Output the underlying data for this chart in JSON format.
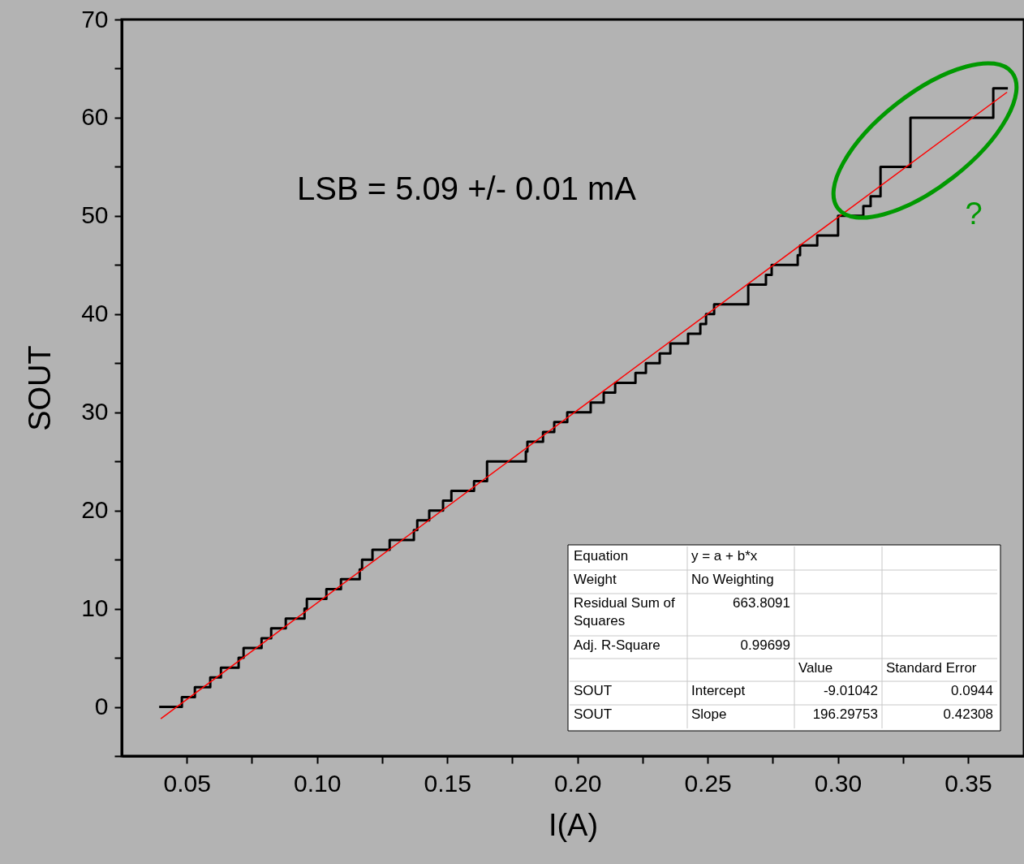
{
  "chart_data": {
    "type": "step",
    "xlabel": "I(A)",
    "ylabel": "SOUT",
    "xlim": [
      0.025,
      0.3715
    ],
    "ylim": [
      -5,
      70
    ],
    "xticks": [
      {
        "value": 0.05,
        "label": "0.05"
      },
      {
        "value": 0.075,
        "label": null
      },
      {
        "value": 0.1,
        "label": "0.10"
      },
      {
        "value": 0.125,
        "label": null
      },
      {
        "value": 0.15,
        "label": "0.15"
      },
      {
        "value": 0.175,
        "label": null
      },
      {
        "value": 0.2,
        "label": "0.20"
      },
      {
        "value": 0.225,
        "label": null
      },
      {
        "value": 0.25,
        "label": "0.25"
      },
      {
        "value": 0.275,
        "label": null
      },
      {
        "value": 0.3,
        "label": "0.30"
      },
      {
        "value": 0.325,
        "label": null
      },
      {
        "value": 0.35,
        "label": "0.35"
      }
    ],
    "yticks": [
      {
        "value": -5,
        "label": null
      },
      0,
      {
        "value": 5,
        "label": null
      },
      10,
      {
        "value": 15,
        "label": null
      },
      20,
      {
        "value": 25,
        "label": null
      },
      30,
      {
        "value": 35,
        "label": null
      },
      40,
      {
        "value": 45,
        "label": null
      },
      50,
      {
        "value": 55,
        "label": null
      },
      60,
      {
        "value": 65,
        "label": null
      },
      70
    ],
    "grid": false,
    "series": [
      {
        "color": "#000000",
        "x": [
          0.0394,
          0.0481,
          0.0531,
          0.059,
          0.0631,
          0.0699,
          0.0718,
          0.0787,
          0.0824,
          0.088,
          0.0952,
          0.0961,
          0.1036,
          0.1092,
          0.1164,
          0.1173,
          0.1213,
          0.1279,
          0.1372,
          0.1385,
          0.1431,
          0.1484,
          0.1516,
          0.1603,
          0.1653,
          0.1802,
          0.1808,
          0.1868,
          0.1911,
          0.1961,
          0.2051,
          0.2101,
          0.2145,
          0.2223,
          0.2263,
          0.2316,
          0.2357,
          0.2425,
          0.2472,
          0.2494,
          0.2525,
          0.2656,
          0.2724,
          0.2746,
          0.2846,
          0.2855,
          0.2921,
          0.3001,
          0.3098,
          0.3126,
          0.3164,
          0.3279,
          0.3597,
          0.3653
        ],
        "values": [
          0,
          1,
          2,
          3,
          4,
          5,
          6,
          7,
          8,
          9,
          10,
          11,
          12,
          13,
          14,
          15,
          16,
          17,
          18,
          19,
          20,
          21,
          22,
          23,
          25,
          26,
          27,
          28,
          29,
          30,
          31,
          32,
          33,
          34,
          35,
          36,
          37,
          38,
          39,
          40,
          41,
          43,
          44,
          45,
          46,
          47,
          48,
          50,
          51,
          52,
          55,
          60,
          63,
          63
        ]
      },
      {
        "type": "line",
        "color": "#ff0000",
        "x": [
          0.04,
          0.365
        ],
        "values": [
          -1.2,
          62.6
        ]
      }
    ],
    "annotations": [
      "LSB = 5.09 +/- 0.01 mA",
      "?",
      "Equation",
      "y = a + b*x",
      "Weight",
      "No Weighting",
      "Residual Sum of Squares",
      "663.8091",
      "Adj. R-Square",
      "0.99699",
      "Value",
      "Standard Error",
      "SOUT",
      "Intercept",
      "-9.01042",
      "0.0944",
      "SOUT",
      "Slope",
      "196.29753",
      "0.42308"
    ]
  }
}
